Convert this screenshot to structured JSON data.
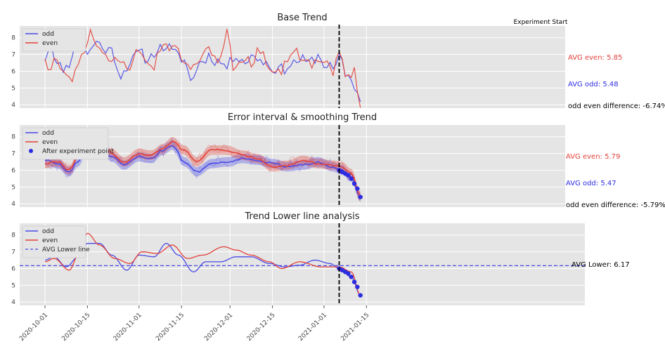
{
  "colors": {
    "odd": "#4a4ae6",
    "even": "#e3413a",
    "bg": "#e5e5e5",
    "grid": "#ffffff",
    "marker": "#2c2ce0"
  },
  "x_ticks": [
    "2020-10-01",
    "2020-10-15",
    "2020-11-01",
    "2020-11-15",
    "2020-12-01",
    "2020-12-15",
    "2021-01-01",
    "2021-01-15"
  ],
  "chart_data": [
    {
      "type": "line",
      "title": "Base Trend",
      "x_range": [
        "2020-10-01",
        "2021-01-13"
      ],
      "ylim": [
        3.8,
        8.7
      ],
      "y_ticks": [
        4,
        5,
        6,
        7,
        8
      ],
      "grid": true,
      "legend_position": "top-left",
      "legend": [
        "odd",
        "even"
      ],
      "vline": {
        "date": "2021-01-06",
        "label": "Experiment Start"
      },
      "annotations": {
        "avg_even": "AVG even: 5.85",
        "avg_odd": "AVG odd: 5.48",
        "difference": "odd even difference: -6.74%"
      },
      "series": [
        {
          "name": "odd",
          "anchors": [
            [
              "2020-10-01",
              6.8
            ],
            [
              "2020-10-03",
              7.8
            ],
            [
              "2020-10-05",
              6.3
            ],
            [
              "2020-10-08",
              6.2
            ],
            [
              "2020-10-11",
              7.4
            ],
            [
              "2020-10-13",
              7.9
            ],
            [
              "2020-10-15",
              7.0
            ],
            [
              "2020-10-18",
              7.8
            ],
            [
              "2020-10-20",
              7.4
            ],
            [
              "2020-10-23",
              7.2
            ],
            [
              "2020-10-26",
              5.8
            ],
            [
              "2020-10-29",
              6.5
            ],
            [
              "2020-11-01",
              7.1
            ],
            [
              "2020-11-04",
              6.7
            ],
            [
              "2020-11-07",
              7.3
            ],
            [
              "2020-11-10",
              7.5
            ],
            [
              "2020-11-13",
              7.0
            ],
            [
              "2020-11-16",
              6.7
            ],
            [
              "2020-11-18",
              5.4
            ],
            [
              "2020-11-21",
              6.5
            ],
            [
              "2020-11-24",
              6.9
            ],
            [
              "2020-11-27",
              6.6
            ],
            [
              "2020-11-30",
              6.3
            ],
            [
              "2020-12-03",
              7.0
            ],
            [
              "2020-12-06",
              6.6
            ],
            [
              "2020-12-09",
              6.9
            ],
            [
              "2020-12-12",
              6.6
            ],
            [
              "2020-12-15",
              6.2
            ],
            [
              "2020-12-18",
              6.1
            ],
            [
              "2020-12-21",
              6.4
            ],
            [
              "2020-12-24",
              6.7
            ],
            [
              "2020-12-27",
              6.5
            ],
            [
              "2020-12-30",
              6.9
            ],
            [
              "2021-01-02",
              6.3
            ],
            [
              "2021-01-05",
              6.1
            ],
            [
              "2021-01-06",
              6.9
            ],
            [
              "2021-01-08",
              5.9
            ],
            [
              "2021-01-10",
              5.5
            ],
            [
              "2021-01-13",
              4.3
            ]
          ]
        },
        {
          "name": "even",
          "anchors": [
            [
              "2020-10-01",
              6.9
            ],
            [
              "2020-10-02",
              5.8
            ],
            [
              "2020-10-04",
              6.9
            ],
            [
              "2020-10-07",
              6.3
            ],
            [
              "2020-10-10",
              5.3
            ],
            [
              "2020-10-13",
              7.2
            ],
            [
              "2020-10-16",
              8.2
            ],
            [
              "2020-10-19",
              7.2
            ],
            [
              "2020-10-22",
              6.5
            ],
            [
              "2020-10-25",
              6.9
            ],
            [
              "2020-10-28",
              6.2
            ],
            [
              "2020-10-31",
              7.0
            ],
            [
              "2020-11-03",
              6.8
            ],
            [
              "2020-11-06",
              6.4
            ],
            [
              "2020-11-09",
              7.8
            ],
            [
              "2020-11-12",
              7.4
            ],
            [
              "2020-11-15",
              6.9
            ],
            [
              "2020-11-18",
              6.0
            ],
            [
              "2020-11-21",
              6.5
            ],
            [
              "2020-11-24",
              7.6
            ],
            [
              "2020-11-27",
              6.4
            ],
            [
              "2020-11-30",
              8.3
            ],
            [
              "2020-12-02",
              6.3
            ],
            [
              "2020-12-05",
              6.8
            ],
            [
              "2020-12-08",
              6.5
            ],
            [
              "2020-12-11",
              7.3
            ],
            [
              "2020-12-14",
              6.3
            ],
            [
              "2020-12-17",
              6.0
            ],
            [
              "2020-12-20",
              6.5
            ],
            [
              "2020-12-23",
              7.2
            ],
            [
              "2020-12-26",
              6.4
            ],
            [
              "2020-12-29",
              6.5
            ],
            [
              "2021-01-01",
              6.4
            ],
            [
              "2021-01-04",
              6.0
            ],
            [
              "2021-01-06",
              7.0
            ],
            [
              "2021-01-08",
              6.0
            ],
            [
              "2021-01-11",
              5.9
            ],
            [
              "2021-01-13",
              3.9
            ]
          ]
        }
      ]
    },
    {
      "type": "line",
      "title": "Error interval & smoothing Trend",
      "x_range": [
        "2020-10-01",
        "2021-01-13"
      ],
      "ylim": [
        3.8,
        8.7
      ],
      "y_ticks": [
        4,
        5,
        6,
        7,
        8
      ],
      "grid": true,
      "legend_position": "top-left",
      "legend": [
        "odd",
        "even",
        "After experiment point"
      ],
      "vline": {
        "date": "2021-01-06",
        "label": ""
      },
      "annotations": {
        "avg_even": "AVG even: 5.79",
        "avg_odd": "AVG odd: 5.47",
        "difference": "odd even difference: -5.79%"
      },
      "series": [
        {
          "name": "odd",
          "anchors": [
            [
              "2020-10-01",
              6.6
            ],
            [
              "2020-10-05",
              6.4
            ],
            [
              "2020-10-09",
              5.9
            ],
            [
              "2020-10-12",
              6.5
            ],
            [
              "2020-10-15",
              7.5
            ],
            [
              "2020-10-19",
              7.4
            ],
            [
              "2020-10-23",
              6.8
            ],
            [
              "2020-10-27",
              6.3
            ],
            [
              "2020-11-01",
              6.8
            ],
            [
              "2020-11-05",
              6.7
            ],
            [
              "2020-11-09",
              7.2
            ],
            [
              "2020-11-12",
              7.5
            ],
            [
              "2020-11-16",
              6.5
            ],
            [
              "2020-11-20",
              5.9
            ],
            [
              "2020-11-25",
              6.4
            ],
            [
              "2020-11-30",
              6.5
            ],
            [
              "2020-12-05",
              6.7
            ],
            [
              "2020-12-10",
              6.6
            ],
            [
              "2020-12-15",
              6.4
            ],
            [
              "2020-12-20",
              6.2
            ],
            [
              "2020-12-25",
              6.3
            ],
            [
              "2020-12-30",
              6.5
            ],
            [
              "2021-01-04",
              6.2
            ],
            [
              "2021-01-07",
              6.0
            ],
            [
              "2021-01-10",
              5.6
            ],
            [
              "2021-01-13",
              4.4
            ]
          ]
        },
        {
          "name": "even",
          "anchors": [
            [
              "2020-10-01",
              6.4
            ],
            [
              "2020-10-05",
              6.5
            ],
            [
              "2020-10-09",
              6.0
            ],
            [
              "2020-10-13",
              7.3
            ],
            [
              "2020-10-15",
              8.0
            ],
            [
              "2020-10-19",
              7.6
            ],
            [
              "2020-10-23",
              7.0
            ],
            [
              "2020-10-27",
              6.5
            ],
            [
              "2020-11-01",
              7.0
            ],
            [
              "2020-11-05",
              6.9
            ],
            [
              "2020-11-09",
              7.3
            ],
            [
              "2020-11-12",
              7.7
            ],
            [
              "2020-11-16",
              7.2
            ],
            [
              "2020-11-20",
              6.5
            ],
            [
              "2020-11-25",
              7.2
            ],
            [
              "2020-11-30",
              7.2
            ],
            [
              "2020-12-05",
              6.9
            ],
            [
              "2020-12-10",
              6.7
            ],
            [
              "2020-12-15",
              6.2
            ],
            [
              "2020-12-20",
              6.3
            ],
            [
              "2020-12-25",
              6.6
            ],
            [
              "2020-12-30",
              6.4
            ],
            [
              "2021-01-04",
              6.3
            ],
            [
              "2021-01-07",
              6.2
            ],
            [
              "2021-01-10",
              5.8
            ],
            [
              "2021-01-13",
              4.4
            ]
          ]
        },
        {
          "name": "After experiment point",
          "type": "scatter",
          "points": [
            [
              "2021-01-06",
              6.0
            ],
            [
              "2021-01-07",
              5.9
            ],
            [
              "2021-01-08",
              5.8
            ],
            [
              "2021-01-09",
              5.7
            ],
            [
              "2021-01-10",
              5.5
            ],
            [
              "2021-01-11",
              5.2
            ],
            [
              "2021-01-12",
              4.9
            ],
            [
              "2021-01-13",
              4.4
            ]
          ]
        }
      ]
    },
    {
      "type": "line",
      "title": "Trend Lower line analysis",
      "x_range": [
        "2020-10-01",
        "2021-01-13"
      ],
      "ylim": [
        3.8,
        8.7
      ],
      "y_ticks": [
        4,
        5,
        6,
        7,
        8
      ],
      "grid": true,
      "legend_position": "top-left",
      "legend": [
        "odd",
        "even",
        "AVG Lower line"
      ],
      "vline": {
        "date": "2021-01-06",
        "label": ""
      },
      "hline": {
        "value": 6.17,
        "label": "AVG Lower: 6.17"
      },
      "series": [
        {
          "name": "odd",
          "anchors": [
            [
              "2020-10-01",
              6.5
            ],
            [
              "2020-10-04",
              6.7
            ],
            [
              "2020-10-08",
              6.1
            ],
            [
              "2020-10-12",
              6.7
            ],
            [
              "2020-10-15",
              7.5
            ],
            [
              "2020-10-19",
              7.5
            ],
            [
              "2020-10-23",
              6.8
            ],
            [
              "2020-10-28",
              5.9
            ],
            [
              "2020-11-01",
              6.8
            ],
            [
              "2020-11-06",
              6.7
            ],
            [
              "2020-11-10",
              7.5
            ],
            [
              "2020-11-14",
              6.8
            ],
            [
              "2020-11-19",
              5.8
            ],
            [
              "2020-11-23",
              6.4
            ],
            [
              "2020-11-28",
              6.4
            ],
            [
              "2020-12-03",
              6.7
            ],
            [
              "2020-12-08",
              6.7
            ],
            [
              "2020-12-14",
              6.3
            ],
            [
              "2020-12-19",
              6.1
            ],
            [
              "2020-12-24",
              6.2
            ],
            [
              "2020-12-29",
              6.5
            ],
            [
              "2021-01-03",
              6.3
            ],
            [
              "2021-01-06",
              6.0
            ],
            [
              "2021-01-10",
              5.5
            ],
            [
              "2021-01-13",
              4.4
            ]
          ]
        },
        {
          "name": "even",
          "anchors": [
            [
              "2020-10-01",
              6.4
            ],
            [
              "2020-10-04",
              6.6
            ],
            [
              "2020-10-09",
              5.9
            ],
            [
              "2020-10-12",
              6.8
            ],
            [
              "2020-10-15",
              8.1
            ],
            [
              "2020-10-19",
              7.4
            ],
            [
              "2020-10-24",
              6.6
            ],
            [
              "2020-10-29",
              6.3
            ],
            [
              "2020-11-02",
              7.0
            ],
            [
              "2020-11-07",
              6.9
            ],
            [
              "2020-11-12",
              7.4
            ],
            [
              "2020-11-17",
              6.6
            ],
            [
              "2020-11-22",
              6.8
            ],
            [
              "2020-11-29",
              7.3
            ],
            [
              "2020-12-03",
              7.1
            ],
            [
              "2020-12-08",
              6.8
            ],
            [
              "2020-12-14",
              6.4
            ],
            [
              "2020-12-18",
              6.0
            ],
            [
              "2020-12-24",
              6.4
            ],
            [
              "2020-12-31",
              6.1
            ],
            [
              "2021-01-06",
              6.1
            ],
            [
              "2021-01-10",
              5.8
            ],
            [
              "2021-01-13",
              4.4
            ]
          ]
        },
        {
          "name": "After experiment point",
          "type": "scatter",
          "points": [
            [
              "2021-01-06",
              6.0
            ],
            [
              "2021-01-07",
              5.9
            ],
            [
              "2021-01-08",
              5.8
            ],
            [
              "2021-01-09",
              5.7
            ],
            [
              "2021-01-10",
              5.5
            ],
            [
              "2021-01-11",
              5.2
            ],
            [
              "2021-01-12",
              4.9
            ],
            [
              "2021-01-13",
              4.4
            ]
          ]
        }
      ]
    }
  ]
}
